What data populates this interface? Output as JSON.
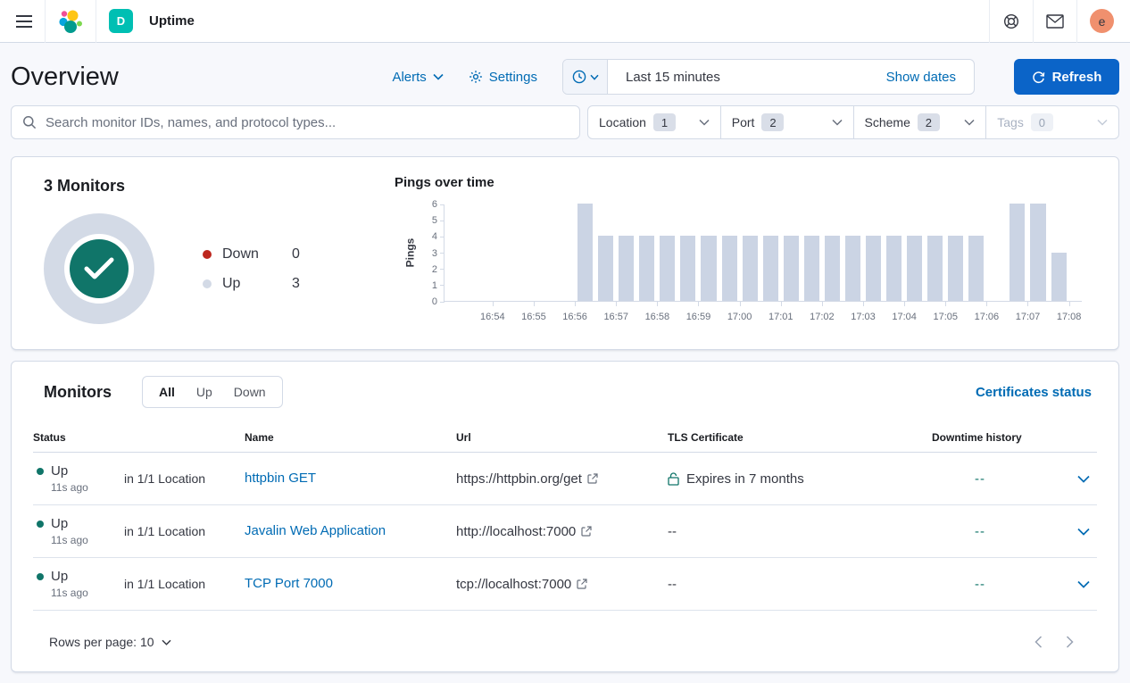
{
  "topbar": {
    "breadcrumb": "Uptime",
    "space_badge": "D",
    "avatar_initial": "e"
  },
  "header": {
    "title": "Overview",
    "alerts_label": "Alerts",
    "settings_label": "Settings",
    "time_range": "Last 15 minutes",
    "show_dates_label": "Show dates",
    "refresh_label": "Refresh"
  },
  "filters": {
    "search_placeholder": "Search monitor IDs, names, and protocol types...",
    "items": [
      {
        "label": "Location",
        "count": "1",
        "disabled": false
      },
      {
        "label": "Port",
        "count": "2",
        "disabled": false
      },
      {
        "label": "Scheme",
        "count": "2",
        "disabled": false
      },
      {
        "label": "Tags",
        "count": "0",
        "disabled": true
      }
    ]
  },
  "snapshot": {
    "title": "3 Monitors",
    "legend": [
      {
        "label": "Down",
        "value": "0",
        "color": "#bd271e"
      },
      {
        "label": "Up",
        "value": "3",
        "color": "#d3dae6"
      }
    ]
  },
  "chart_data": {
    "type": "bar",
    "title": "Pings over time",
    "ylabel": "Pings",
    "ylim": [
      0,
      6
    ],
    "ytick_labels": [
      "0",
      "1",
      "2",
      "3",
      "4",
      "5",
      "6"
    ],
    "domain": [
      "16:52:50",
      "17:08:20"
    ],
    "x": [
      "16:56:00",
      "16:56:30",
      "16:57:00",
      "16:57:30",
      "16:58:00",
      "16:58:30",
      "16:59:00",
      "16:59:30",
      "17:00:00",
      "17:00:30",
      "17:01:00",
      "17:01:30",
      "17:02:00",
      "17:02:30",
      "17:03:00",
      "17:03:30",
      "17:04:00",
      "17:04:30",
      "17:05:00",
      "17:05:30",
      "17:06:00",
      "17:06:30",
      "17:07:00",
      "17:07:30"
    ],
    "values": [
      6,
      4,
      4,
      4,
      4,
      4,
      4,
      4,
      4,
      4,
      4,
      4,
      4,
      4,
      4,
      4,
      4,
      4,
      4,
      4,
      0,
      6,
      6,
      3
    ],
    "x_tick_labels": [
      "16:54",
      "16:55",
      "16:56",
      "16:57",
      "16:58",
      "16:59",
      "17:00",
      "17:01",
      "17:02",
      "17:03",
      "17:04",
      "17:05",
      "17:06",
      "17:07",
      "17:08"
    ],
    "bar_color": "#cbd4e4",
    "grid": false,
    "legend_position": "none"
  },
  "monitors": {
    "title": "Monitors",
    "tabs": [
      {
        "label": "All"
      },
      {
        "label": "Up"
      },
      {
        "label": "Down"
      }
    ],
    "active_tab": "All",
    "certificates_link": "Certificates status",
    "columns": {
      "status": "Status",
      "name": "Name",
      "url": "Url",
      "tls": "TLS Certificate",
      "downtime": "Downtime history"
    },
    "rows": [
      {
        "status": "Up",
        "ago": "11s ago",
        "location": "in 1/1 Location",
        "name": "httpbin GET",
        "url": "https://httpbin.org/get",
        "tls": "Expires in 7 months",
        "has_lock": true,
        "downtime": "--"
      },
      {
        "status": "Up",
        "ago": "11s ago",
        "location": "in 1/1 Location",
        "name": "Javalin Web Application",
        "url": "http://localhost:7000",
        "tls": "--",
        "has_lock": false,
        "downtime": "--"
      },
      {
        "status": "Up",
        "ago": "11s ago",
        "location": "in 1/1 Location",
        "name": "TCP Port 7000",
        "url": "tcp://localhost:7000",
        "tls": "--",
        "has_lock": false,
        "downtime": "--"
      }
    ],
    "rows_per_page_label": "Rows per page: 10"
  },
  "colors": {
    "primary_link": "#006bb4",
    "refresh_button": "#0b64c8",
    "bar_color": "#cbd4e4",
    "up_status": "#107569",
    "down_legend": "#bd271e",
    "up_legend": "#d3dae6",
    "space_badge": "#00bfb3",
    "avatar": "#f0906e"
  },
  "icons": {
    "menu": "hamburger-lines",
    "help": "life-ring",
    "newsfeed": "envelope",
    "clock": "clock-face",
    "gear": "cog",
    "refresh": "circular-arrow",
    "search": "magnifier",
    "external_link": "box-arrow",
    "lock": "padlock",
    "check": "checkmark",
    "chevron": "chevron-down"
  }
}
